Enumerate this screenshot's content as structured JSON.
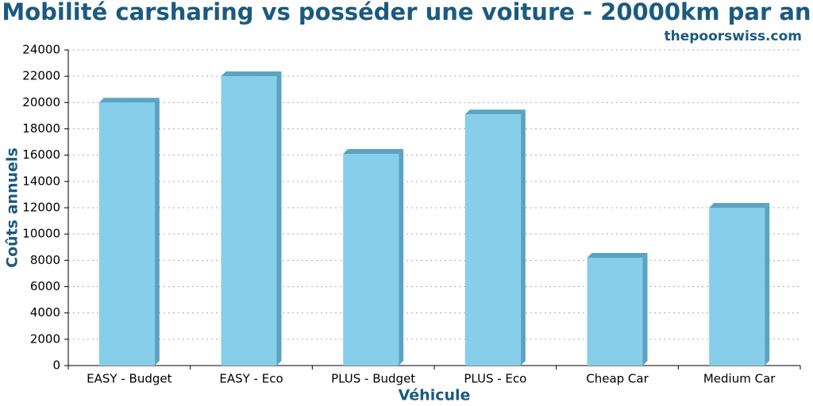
{
  "chart_data": {
    "type": "bar",
    "title": "Mobilité carsharing vs posséder une voiture - 20000km par an",
    "subtitle": "thepoorswiss.com",
    "x_label": "Véhicule",
    "y_label": "Coûts annuels",
    "categories": [
      "EASY - Budget",
      "EASY - Eco",
      "PLUS - Budget",
      "PLUS - Eco",
      "Cheap Car",
      "Medium Car"
    ],
    "values": [
      20000,
      22000,
      16100,
      19100,
      8200,
      12000
    ],
    "color": "#87ceeb",
    "ylim": [
      0,
      24000
    ],
    "yticks": [
      0,
      2000,
      4000,
      6000,
      8000,
      10000,
      12000,
      14000,
      16000,
      18000,
      20000,
      22000,
      24000
    ],
    "grid": true
  }
}
